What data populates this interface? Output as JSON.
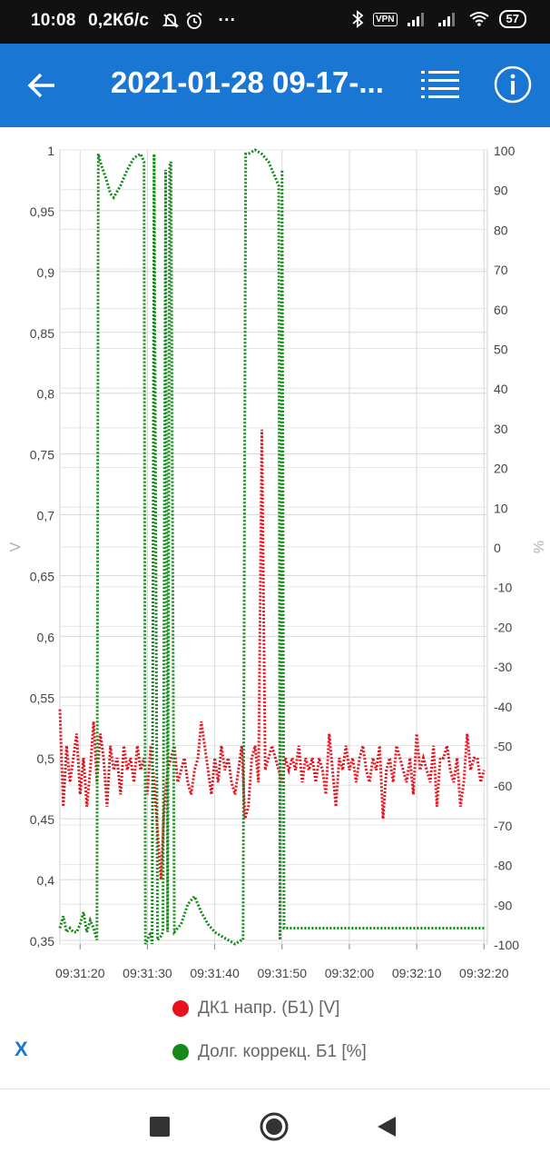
{
  "status_bar": {
    "time": "10:08",
    "speed": "0,2Кб/с",
    "more": "···",
    "vpn": "VPN",
    "battery": "57"
  },
  "app_bar": {
    "title": "2021-01-28 09-17-..."
  },
  "legend": {
    "items": [
      {
        "label": "ДК1 напр. (Б1) [V]",
        "color": "#e8111b"
      },
      {
        "label": "Долг. коррекц. Б1 [%]",
        "color": "#138a18"
      }
    ],
    "x_button": "X"
  },
  "chart_data": {
    "type": "line",
    "x_ticks": [
      "09:31:20",
      "09:31:30",
      "09:31:40",
      "09:31:50",
      "09:32:00",
      "09:32:10",
      "09:32:20"
    ],
    "x_range": [
      "09:31:17",
      "09:32:20"
    ],
    "y_left": {
      "label": "V",
      "range": [
        0.347,
        1.0
      ],
      "ticks": [
        "1",
        "0,95",
        "0,9",
        "0,85",
        "0,8",
        "0,75",
        "0,7",
        "0,65",
        "0,6",
        "0,55",
        "0,5",
        "0,45",
        "0,4",
        "0,35"
      ]
    },
    "y_right": {
      "label": "%",
      "range": [
        -100,
        100
      ],
      "ticks": [
        "100",
        "90",
        "80",
        "70",
        "60",
        "50",
        "40",
        "30",
        "20",
        "10",
        "0",
        "-10",
        "-20",
        "-30",
        "-40",
        "-50",
        "-60",
        "-70",
        "-80",
        "-90",
        "-100"
      ]
    },
    "grid": true,
    "series": [
      {
        "name": "ДК1 напр. (Б1) [V]",
        "axis": "left",
        "color": "#e8111b",
        "x": [
          17,
          17.5,
          18,
          18.5,
          19,
          19.5,
          20,
          20.5,
          21,
          21.5,
          22,
          22.5,
          23,
          23.5,
          24,
          24.5,
          25,
          25.5,
          26,
          26.5,
          27,
          27.5,
          28,
          28.5,
          29,
          29.5,
          30,
          30.5,
          31,
          31.5,
          32,
          32.5,
          33,
          33.5,
          34,
          34.5,
          35,
          35.5,
          36,
          36.5,
          37,
          37.5,
          38,
          38.5,
          39,
          39.5,
          40,
          40.5,
          41,
          41.5,
          42,
          42.5,
          43,
          43.5,
          44,
          44.5,
          45,
          45.5,
          46,
          46.5,
          47,
          47.5,
          48,
          48.5,
          49,
          49.5,
          50,
          50.5,
          51,
          51.5,
          52,
          52.5,
          53,
          53.5,
          54,
          54.5,
          55,
          55.5,
          56,
          56.5,
          57,
          57.5,
          58,
          58.5,
          59,
          59.5,
          60,
          60.5,
          61,
          61.5,
          62,
          62.5,
          63,
          63.5,
          64,
          64.5,
          65,
          65.5,
          66,
          66.5,
          67,
          67.5,
          68,
          68.5,
          69,
          69.5,
          70,
          70.5,
          71,
          71.5,
          72,
          72.5,
          73,
          73.5,
          74,
          74.5,
          75,
          75.5,
          76,
          76.5,
          77,
          77.5,
          78,
          78.5,
          79,
          79.5,
          80
        ],
        "y": [
          0.54,
          0.46,
          0.51,
          0.48,
          0.5,
          0.52,
          0.47,
          0.5,
          0.46,
          0.49,
          0.53,
          0.48,
          0.52,
          0.5,
          0.46,
          0.51,
          0.49,
          0.5,
          0.47,
          0.51,
          0.49,
          0.5,
          0.48,
          0.51,
          0.49,
          0.5,
          0.47,
          0.51,
          0.48,
          0.44,
          0.4,
          0.46,
          0.49,
          0.5,
          0.51,
          0.48,
          0.49,
          0.5,
          0.48,
          0.47,
          0.49,
          0.5,
          0.53,
          0.51,
          0.49,
          0.47,
          0.5,
          0.48,
          0.51,
          0.49,
          0.5,
          0.48,
          0.47,
          0.49,
          0.51,
          0.45,
          0.46,
          0.5,
          0.51,
          0.48,
          0.77,
          0.49,
          0.5,
          0.51,
          0.5,
          0.49,
          0.48,
          0.5,
          0.49,
          0.5,
          0.49,
          0.51,
          0.48,
          0.5,
          0.49,
          0.5,
          0.48,
          0.5,
          0.49,
          0.47,
          0.52,
          0.49,
          0.46,
          0.5,
          0.49,
          0.51,
          0.49,
          0.5,
          0.48,
          0.5,
          0.51,
          0.49,
          0.48,
          0.5,
          0.49,
          0.51,
          0.45,
          0.49,
          0.5,
          0.48,
          0.51,
          0.5,
          0.49,
          0.48,
          0.5,
          0.47,
          0.52,
          0.49,
          0.5,
          0.49,
          0.48,
          0.51,
          0.46,
          0.5,
          0.5,
          0.51,
          0.49,
          0.48,
          0.5,
          0.46,
          0.48,
          0.52,
          0.49,
          0.5,
          0.5,
          0.48,
          0.49
        ],
        "dotted": true
      },
      {
        "name": "Долг. коррекц. Б1 [%]",
        "axis": "right",
        "color": "#138a18",
        "x": [
          17,
          17.5,
          18,
          18.5,
          19,
          19.5,
          20,
          20.5,
          21,
          21.5,
          22,
          22.5,
          22.7,
          23,
          24,
          24.5,
          25,
          26,
          27,
          28,
          29,
          29.5,
          29.7,
          30,
          30.5,
          30.7,
          31,
          31.5,
          32,
          32.3,
          32.7,
          33,
          33.3,
          33.5,
          34,
          35,
          36,
          37,
          38,
          39,
          40,
          41,
          42,
          43,
          44,
          44.2,
          44.6,
          45,
          46,
          47,
          48,
          49,
          49.5,
          49.7,
          50,
          50.3,
          51,
          55,
          60,
          65,
          70,
          75,
          80
        ],
        "y": [
          -96,
          -93,
          -97,
          -96,
          -97,
          -97,
          -95,
          -92,
          -97,
          -94,
          -96,
          -99,
          99,
          97,
          92,
          89,
          88,
          91,
          95,
          98,
          99,
          97,
          -100,
          -99,
          -97,
          -100,
          99,
          -99,
          -98,
          -97,
          95,
          -97,
          96,
          97,
          -97,
          -95,
          -90,
          -88,
          -92,
          -95,
          -97,
          -98,
          -99,
          -100,
          -99,
          -99,
          99,
          99,
          100,
          99,
          97,
          93,
          91,
          -99,
          95,
          -96,
          -96,
          -96,
          -96,
          -96,
          -96,
          -96,
          -96
        ],
        "dotted": true
      }
    ]
  }
}
